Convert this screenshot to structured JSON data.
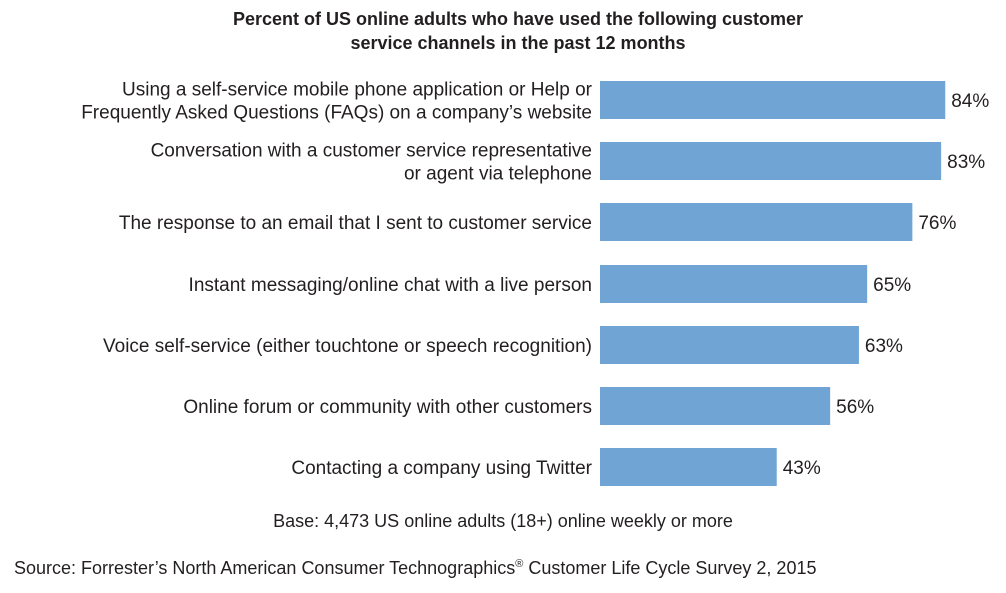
{
  "chart_data": {
    "type": "bar",
    "orientation": "horizontal",
    "title": "Percent of US online adults who have used the following customer service channels in the past 12 months",
    "title_lines": [
      "Percent of US online adults who have used the following customer",
      "service channels in the past 12 months"
    ],
    "categories": [
      "Using a self-service mobile phone application or Help or Frequently Asked Questions (FAQs) on a company’s website",
      "Conversation with a customer service representative or agent via telephone",
      "The response to an email that I sent to customer service",
      "Instant messaging/online chat with a live person",
      "Voice self-service (either touchtone or speech recognition)",
      "Online forum or community with other customers",
      "Contacting a company using Twitter"
    ],
    "category_lines": [
      [
        "Using a self-service mobile phone application or Help or",
        "Frequently Asked Questions (FAQs) on a company’s website"
      ],
      [
        "Conversation with a customer service representative",
        "or agent via telephone"
      ],
      [
        "The response to an email that I sent to customer service"
      ],
      [
        "Instant messaging/online chat with a live person"
      ],
      [
        "Voice self-service (either touchtone or speech recognition)"
      ],
      [
        "Online forum or community with other customers"
      ],
      [
        "Contacting a company using Twitter"
      ]
    ],
    "values": [
      84,
      83,
      76,
      65,
      63,
      56,
      43
    ],
    "value_labels": [
      "84%",
      "83%",
      "76%",
      "65%",
      "63%",
      "56%",
      "43%"
    ],
    "unit": "%",
    "xlim": [
      0,
      100
    ],
    "grid": false,
    "legend": "none",
    "bar_color": "#6fa4d4"
  },
  "notes": {
    "base": "Base: 4,473 US online adults (18+) online weekly or more",
    "source_prefix": "Source: Forrester’s North American Consumer Technographics",
    "source_mark": "®",
    "source_suffix": " Customer Life Cycle Survey 2, 2015"
  }
}
